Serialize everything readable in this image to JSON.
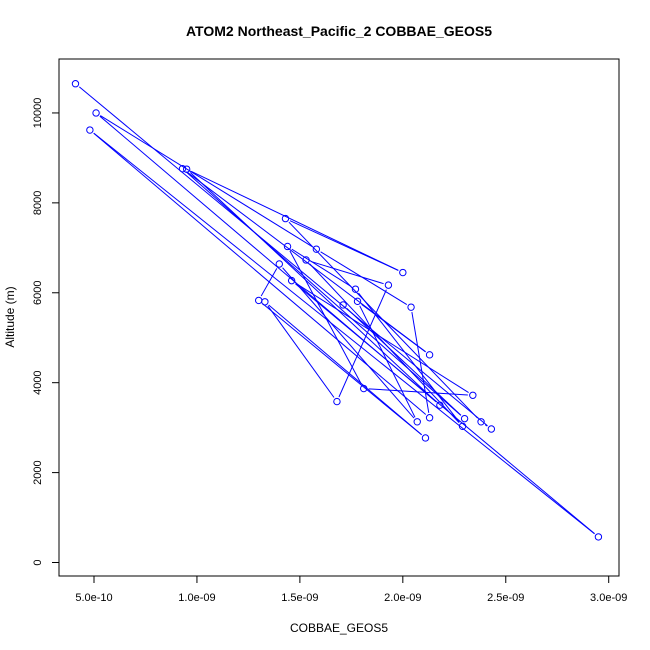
{
  "chart_data": {
    "type": "line",
    "title": "ATOM2 Northeast_Pacific_2 COBBAE_GEOS5",
    "xlabel": "COBBAE_GEOS5",
    "ylabel": "Altitude (m)",
    "x_ticks": [
      5e-10,
      1e-09,
      1.5e-09,
      2e-09,
      2.5e-09,
      3e-09
    ],
    "x_tick_labels": [
      "5.0e-10",
      "1.0e-09",
      "1.5e-09",
      "2.0e-09",
      "2.5e-09",
      "3.0e-09"
    ],
    "y_ticks": [
      0,
      2000,
      4000,
      6000,
      8000,
      10000
    ],
    "y_tick_labels": [
      "0",
      "2000",
      "4000",
      "6000",
      "8000",
      "10000"
    ],
    "xlim": [
      3.3e-10,
      3.05e-09
    ],
    "ylim": [
      -300,
      11200
    ],
    "grid": false,
    "legend": "none",
    "series_color": "#0000ff",
    "points": [
      [
        4.1e-10,
        10650
      ],
      [
        2.43e-09,
        2970
      ],
      [
        2.38e-09,
        3130
      ],
      [
        1.43e-09,
        7650
      ],
      [
        2e-09,
        6450
      ],
      [
        9.5e-10,
        8750
      ],
      [
        2.18e-09,
        3500
      ],
      [
        5.1e-10,
        10000
      ],
      [
        1.58e-09,
        6970
      ],
      [
        2.04e-09,
        5680
      ],
      [
        2.13e-09,
        3220
      ],
      [
        4.8e-10,
        9620
      ],
      [
        2.95e-09,
        570
      ],
      [
        1.46e-09,
        6270
      ],
      [
        2.34e-09,
        3720
      ],
      [
        1.81e-09,
        3870
      ],
      [
        1.44e-09,
        7030
      ],
      [
        1.77e-09,
        6080
      ],
      [
        2.29e-09,
        3030
      ],
      [
        1.53e-09,
        6730
      ],
      [
        1.93e-09,
        6170
      ],
      [
        1.68e-09,
        3580
      ],
      [
        1.33e-09,
        5800
      ],
      [
        2.11e-09,
        2770
      ],
      [
        1.3e-09,
        5830
      ],
      [
        1.4e-09,
        6640
      ],
      [
        2.07e-09,
        3130
      ],
      [
        1.78e-09,
        5810
      ],
      [
        2.13e-09,
        4620
      ],
      [
        9.3e-10,
        8760
      ],
      [
        2.3e-09,
        3200
      ],
      [
        1.71e-09,
        5730
      ]
    ]
  }
}
